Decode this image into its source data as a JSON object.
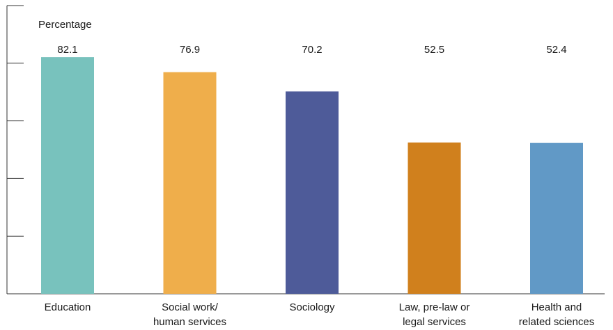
{
  "chart_data": {
    "type": "bar",
    "ylabel": "Percentage",
    "ylim": [
      0,
      100
    ],
    "y_ticks": [
      0,
      20,
      40,
      60,
      80,
      100
    ],
    "show_tick_labels": false,
    "grid": false,
    "categories": [
      [
        "Education"
      ],
      [
        "Social work/",
        "human services"
      ],
      [
        "Sociology"
      ],
      [
        "Law, pre-law or",
        "legal services"
      ],
      [
        "Health and",
        "related sciences"
      ]
    ],
    "values": [
      82.1,
      76.9,
      70.2,
      52.5,
      52.4
    ],
    "value_labels": [
      "82.1",
      "76.9",
      "70.2",
      "52.5",
      "52.4"
    ],
    "colors": [
      "#78c2bd",
      "#efae4b",
      "#4e5b99",
      "#d0801d",
      "#6199c6"
    ]
  }
}
